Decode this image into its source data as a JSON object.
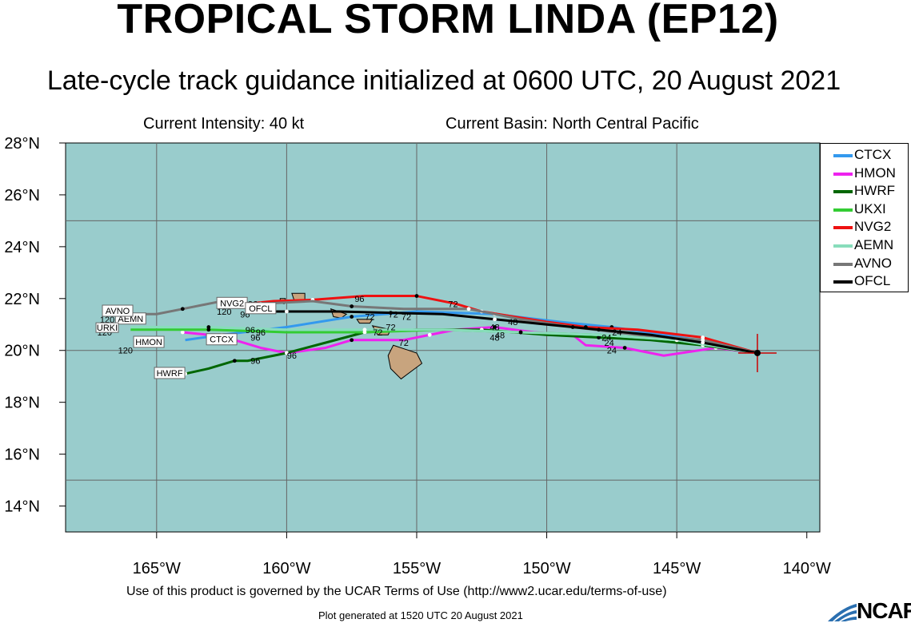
{
  "title": "TROPICAL STORM LINDA (EP12)",
  "subtitle": "Late-cycle track guidance initialized at 0600 UTC, 20 August 2021",
  "intensity": "Current Intensity: 40 kt",
  "basin": "Current Basin: North Central Pacific",
  "terms": "Use of this product is governed by the UCAR Terms of Use (http://www2.ucar.edu/terms-of-use)",
  "footer": "Plot generated at 1520 UTC   20 August 2021",
  "logo_text": "NCAR",
  "chart_data": {
    "type": "map-tracks",
    "xlim": [
      -168.5,
      -139.5
    ],
    "ylim": [
      13,
      28
    ],
    "x_ticks": [
      -165,
      -160,
      -155,
      -150,
      -145,
      -140
    ],
    "x_tick_labels": [
      "165°W",
      "160°W",
      "155°W",
      "150°W",
      "145°W",
      "140°W"
    ],
    "y_ticks": [
      14,
      16,
      18,
      20,
      22,
      24,
      26,
      28
    ],
    "y_tick_labels": [
      "14°N",
      "16°N",
      "18°N",
      "20°N",
      "22°N",
      "24°N",
      "26°N",
      "28°N"
    ],
    "grid_lons": [
      -165,
      -160,
      -155,
      -150,
      -145
    ],
    "grid_lats": [
      15,
      20,
      25
    ],
    "ocean_color": "#99cccc",
    "land_color": "#c8a47e",
    "storm_position": {
      "lon": -141.9,
      "lat": 19.9
    },
    "legend_position": "right",
    "series": [
      {
        "name": "CTCX",
        "color": "#3399ee",
        "points": [
          [
            -141.9,
            19.9
          ],
          [
            -143.5,
            20.3
          ],
          [
            -145.5,
            20.6
          ],
          [
            -147.5,
            20.9
          ],
          [
            -149.5,
            21.1
          ],
          [
            -152,
            21.4
          ],
          [
            -155,
            21.5
          ],
          [
            -157.5,
            21.3
          ],
          [
            -160,
            20.9
          ],
          [
            -162.5,
            20.6
          ],
          [
            -163.9,
            20.4
          ]
        ],
        "end_label": "CTCX",
        "end_label_pos": [
          -162.5,
          20.4
        ]
      },
      {
        "name": "HMON",
        "color": "#ee22ee",
        "points": [
          [
            -141.9,
            19.9
          ],
          [
            -143.5,
            20.1
          ],
          [
            -145.5,
            19.8
          ],
          [
            -147,
            20.1
          ],
          [
            -148.5,
            20.2
          ],
          [
            -149,
            20.6
          ],
          [
            -150.5,
            20.7
          ],
          [
            -152,
            20.9
          ],
          [
            -153.5,
            20.8
          ],
          [
            -154.5,
            20.6
          ],
          [
            -155.5,
            20.4
          ],
          [
            -157.5,
            20.4
          ],
          [
            -158.5,
            20.1
          ],
          [
            -160,
            19.9
          ],
          [
            -161,
            20.1
          ],
          [
            -162,
            20.4
          ],
          [
            -163,
            20.6
          ],
          [
            -164,
            20.7
          ]
        ],
        "end_label": "HMON",
        "end_label_pos": [
          -165.3,
          20.3
        ]
      },
      {
        "name": "HWRF",
        "color": "#006600",
        "points": [
          [
            -141.9,
            19.9
          ],
          [
            -144,
            20.2
          ],
          [
            -146,
            20.4
          ],
          [
            -148,
            20.5
          ],
          [
            -150,
            20.6
          ],
          [
            -152.5,
            20.8
          ],
          [
            -155,
            20.8
          ],
          [
            -157,
            20.7
          ],
          [
            -158.5,
            20.3
          ],
          [
            -160,
            19.9
          ],
          [
            -161.5,
            19.6
          ],
          [
            -162,
            19.6
          ],
          [
            -163,
            19.3
          ],
          [
            -163.9,
            19.1
          ]
        ],
        "end_label": "HWRF",
        "end_label_pos": [
          -164.5,
          19.1
        ]
      },
      {
        "name": "UKXI",
        "color": "#33cc33",
        "points": [
          [
            -141.9,
            19.9
          ],
          [
            -145,
            20.4
          ],
          [
            -148,
            20.6
          ],
          [
            -151,
            20.7
          ],
          [
            -154,
            20.8
          ],
          [
            -157,
            20.7
          ],
          [
            -160,
            20.7
          ],
          [
            -163,
            20.8
          ],
          [
            -166,
            20.8
          ]
        ],
        "end_label": "",
        "end_label_pos": null
      },
      {
        "name": "NVG2",
        "color": "#ee1111",
        "points": [
          [
            -141.9,
            19.9
          ],
          [
            -144,
            20.5
          ],
          [
            -146.5,
            20.8
          ],
          [
            -148.5,
            20.9
          ],
          [
            -150,
            21.1
          ],
          [
            -152.5,
            21.5
          ],
          [
            -153.5,
            21.8
          ],
          [
            -155,
            22.1
          ],
          [
            -157,
            22.1
          ],
          [
            -159,
            21.95
          ],
          [
            -160.5,
            21.9
          ],
          [
            -161.5,
            21.8
          ]
        ],
        "end_label": "NVG2",
        "end_label_pos": [
          -162.1,
          21.8
        ]
      },
      {
        "name": "AEMN",
        "color": "#88ddbb",
        "points": [
          [
            -141.9,
            19.9
          ],
          [
            -145,
            20.4
          ],
          [
            -148,
            20.6
          ],
          [
            -151,
            20.7
          ],
          [
            -154,
            20.8
          ],
          [
            -157,
            20.8
          ],
          [
            -160,
            20.8
          ],
          [
            -163,
            20.9
          ],
          [
            -166,
            20.9
          ]
        ],
        "end_label": "AEMN",
        "end_label_pos": [
          -166,
          21.2
        ]
      },
      {
        "name": "AVNO",
        "color": "#777777",
        "points": [
          [
            -141.9,
            19.9
          ],
          [
            -144,
            20.4
          ],
          [
            -146.5,
            20.6
          ],
          [
            -149,
            20.9
          ],
          [
            -151,
            21.2
          ],
          [
            -153,
            21.6
          ],
          [
            -155.5,
            21.6
          ],
          [
            -157.5,
            21.7
          ],
          [
            -159,
            21.9
          ],
          [
            -161,
            21.8
          ],
          [
            -162.5,
            21.9
          ],
          [
            -164,
            21.6
          ],
          [
            -165,
            21.4
          ],
          [
            -166.5,
            21.4
          ]
        ],
        "end_label": "AVNO",
        "end_label_pos": [
          -166.5,
          21.5
        ]
      },
      {
        "name": "OFCL",
        "color": "#000000",
        "points": [
          [
            -141.9,
            19.9
          ],
          [
            -144,
            20.3
          ],
          [
            -146,
            20.6
          ],
          [
            -148,
            20.8
          ],
          [
            -150,
            21
          ],
          [
            -152,
            21.2
          ],
          [
            -154,
            21.4
          ],
          [
            -156,
            21.45
          ],
          [
            -158,
            21.5
          ],
          [
            -160,
            21.5
          ],
          [
            -161.4,
            21.5
          ]
        ],
        "end_label": "OFCL",
        "end_label_pos": [
          -161,
          21.6
        ]
      }
    ],
    "hour_labels": [
      {
        "text": "96",
        "lon": -157.2,
        "lat": 22.0
      },
      {
        "text": "96",
        "lon": -161.3,
        "lat": 21.8
      },
      {
        "text": "120",
        "lon": -162.4,
        "lat": 21.5
      },
      {
        "text": "96",
        "lon": -161.6,
        "lat": 21.4
      },
      {
        "text": "72",
        "lon": -153.6,
        "lat": 21.8
      },
      {
        "text": "72",
        "lon": -155.9,
        "lat": 21.4
      },
      {
        "text": "72",
        "lon": -155.4,
        "lat": 21.3
      },
      {
        "text": "72",
        "lon": -156.8,
        "lat": 21.3
      },
      {
        "text": "72",
        "lon": -156.0,
        "lat": 20.9
      },
      {
        "text": "72",
        "lon": -156.5,
        "lat": 20.7
      },
      {
        "text": "72",
        "lon": -155.5,
        "lat": 20.3
      },
      {
        "text": "48",
        "lon": -151.3,
        "lat": 21.1
      },
      {
        "text": "48",
        "lon": -152.0,
        "lat": 20.9
      },
      {
        "text": "48",
        "lon": -151.8,
        "lat": 20.6
      },
      {
        "text": "48",
        "lon": -152.0,
        "lat": 20.5
      },
      {
        "text": "96",
        "lon": -161.4,
        "lat": 20.8
      },
      {
        "text": "96",
        "lon": -161.0,
        "lat": 20.7
      },
      {
        "text": "96",
        "lon": -161.2,
        "lat": 20.5
      },
      {
        "text": "96",
        "lon": -159.8,
        "lat": 19.8
      },
      {
        "text": "96",
        "lon": -161.2,
        "lat": 19.6
      },
      {
        "text": "120",
        "lon": -166.9,
        "lat": 21.2
      },
      {
        "text": "120",
        "lon": -167.0,
        "lat": 20.7
      },
      {
        "text": "120",
        "lon": -166.2,
        "lat": 20.0
      },
      {
        "text": "24",
        "lon": -147.3,
        "lat": 20.7
      },
      {
        "text": "24",
        "lon": -147.7,
        "lat": 20.5
      },
      {
        "text": "24",
        "lon": -147.6,
        "lat": 20.3
      },
      {
        "text": "24",
        "lon": -147.5,
        "lat": 20.0
      }
    ],
    "end_label_texts": [
      "URKI"
    ]
  }
}
